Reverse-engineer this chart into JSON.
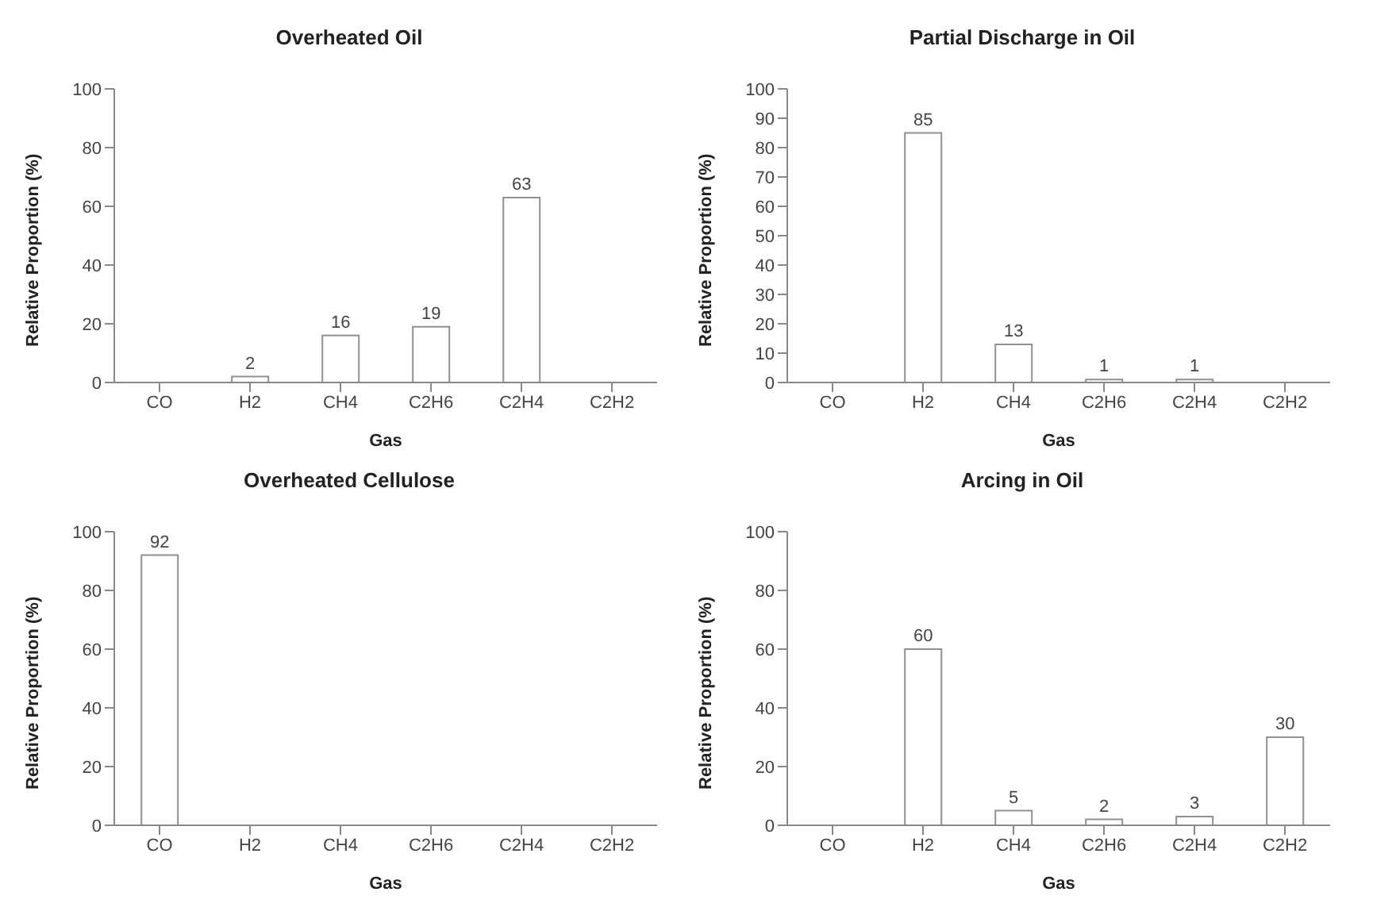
{
  "chart_data": [
    {
      "type": "bar",
      "title": "Overheated Oil",
      "xlabel": "Gas",
      "ylabel": "Relative Proportion (%)",
      "categories": [
        "CO",
        "H2",
        "CH4",
        "C2H6",
        "C2H4",
        "C2H2"
      ],
      "values": [
        null,
        2,
        16,
        19,
        63,
        null
      ],
      "color": "#ffffff",
      "ylim": [
        0,
        100
      ],
      "yticks": [
        0,
        20,
        40,
        60,
        80,
        100
      ],
      "data_labels": true,
      "grid": false,
      "legend": false
    },
    {
      "type": "bar",
      "title": "Partial Discharge in Oil",
      "xlabel": "Gas",
      "ylabel": "Relative Proportion (%)",
      "categories": [
        "CO",
        "H2",
        "CH4",
        "C2H6",
        "C2H4",
        "C2H2"
      ],
      "values": [
        null,
        85,
        13,
        1,
        1,
        null
      ],
      "color": "#ffffff",
      "ylim": [
        0,
        100
      ],
      "yticks": [
        0,
        10,
        20,
        30,
        40,
        50,
        60,
        70,
        80,
        90,
        100
      ],
      "data_labels": true,
      "grid": false,
      "legend": false
    },
    {
      "type": "bar",
      "title": "Overheated Cellulose",
      "xlabel": "Gas",
      "ylabel": "Relative Proportion (%)",
      "categories": [
        "CO",
        "H2",
        "CH4",
        "C2H6",
        "C2H4",
        "C2H2"
      ],
      "values": [
        92,
        null,
        null,
        null,
        null,
        null
      ],
      "color": "#ffffff",
      "ylim": [
        0,
        100
      ],
      "yticks": [
        0,
        20,
        40,
        60,
        80,
        100
      ],
      "data_labels": true,
      "grid": false,
      "legend": false
    },
    {
      "type": "bar",
      "title": "Arcing in Oil",
      "xlabel": "Gas",
      "ylabel": "Relative Proportion (%)",
      "categories": [
        "CO",
        "H2",
        "CH4",
        "C2H6",
        "C2H4",
        "C2H2"
      ],
      "values": [
        null,
        60,
        5,
        2,
        3,
        30
      ],
      "color": "#ffffff",
      "ylim": [
        0,
        100
      ],
      "yticks": [
        0,
        20,
        40,
        60,
        80,
        100
      ],
      "data_labels": true,
      "grid": false,
      "legend": false
    }
  ]
}
